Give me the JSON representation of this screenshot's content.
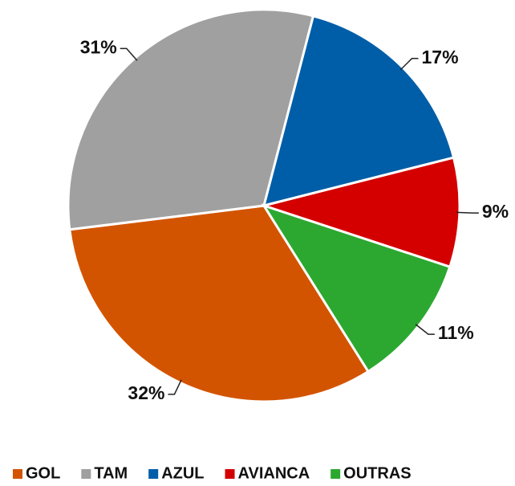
{
  "chart_data": {
    "type": "pie",
    "categories": [
      "GOL",
      "TAM",
      "AZUL",
      "AVIANCA",
      "OUTRAS"
    ],
    "values": [
      32,
      31,
      17,
      9,
      11
    ],
    "value_labels": [
      "32%",
      "31%",
      "17%",
      "9%",
      "11%"
    ],
    "colors": [
      "#d35400",
      "#a0a0a0",
      "#005ea8",
      "#d40000",
      "#2ca830"
    ],
    "legend": "bottom"
  }
}
